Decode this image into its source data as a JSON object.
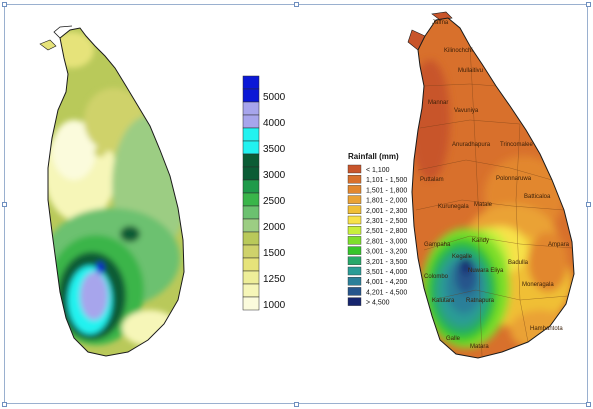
{
  "colors": {
    "ocean": "#ffffff",
    "border": "#1a1a1a",
    "frame": "#9ab0cf"
  },
  "left_map": {
    "colorbar": [
      {
        "label": "",
        "color": "#0b18d6"
      },
      {
        "label": "5000",
        "color": "#0b18d6"
      },
      {
        "label": "",
        "color": "#a7a5ec"
      },
      {
        "label": "4000",
        "color": "#a7a5ec"
      },
      {
        "label": "",
        "color": "#22f2f0"
      },
      {
        "label": "3500",
        "color": "#22f2f0"
      },
      {
        "label": "",
        "color": "#0b5c35"
      },
      {
        "label": "3000",
        "color": "#0b5c35"
      },
      {
        "label": "",
        "color": "#1f9a4a"
      },
      {
        "label": "2500",
        "color": "#3ab54a"
      },
      {
        "label": "",
        "color": "#6cc170"
      },
      {
        "label": "2000",
        "color": "#9ccd83"
      },
      {
        "label": "",
        "color": "#b9c95a"
      },
      {
        "label": "1500",
        "color": "#cfd26b"
      },
      {
        "label": "",
        "color": "#e6e37a"
      },
      {
        "label": "1250",
        "color": "#eeee99"
      },
      {
        "label": "",
        "color": "#f6f6b8"
      },
      {
        "label": "1000",
        "color": "#fbfbdc"
      }
    ]
  },
  "right_map": {
    "legend_title": "Rainfall (mm)",
    "legend": [
      {
        "label": "< 1,100",
        "color": "#c8552b"
      },
      {
        "label": "1,101 - 1,500",
        "color": "#d8702c"
      },
      {
        "label": "1,501 - 1,800",
        "color": "#e2872e"
      },
      {
        "label": "1,801 - 2,000",
        "color": "#eaa234"
      },
      {
        "label": "2,001 - 2,300",
        "color": "#f0bf36"
      },
      {
        "label": "2,301 - 2,500",
        "color": "#f7e24a"
      },
      {
        "label": "2,501 - 2,800",
        "color": "#c8ef3c"
      },
      {
        "label": "2,801 - 3,000",
        "color": "#7ede2c"
      },
      {
        "label": "3,001 - 3,200",
        "color": "#36c52a"
      },
      {
        "label": "3,201 - 3,500",
        "color": "#27a86a"
      },
      {
        "label": "3,501 - 4,000",
        "color": "#2a9c96"
      },
      {
        "label": "4,001 - 4,200",
        "color": "#2b7f99"
      },
      {
        "label": "4,201 - 4,500",
        "color": "#26558c"
      },
      {
        "label": "> 4,500",
        "color": "#16256e"
      }
    ],
    "places": [
      {
        "name": "Jaffna"
      },
      {
        "name": "Kilinochchi"
      },
      {
        "name": "Mullaitivu"
      },
      {
        "name": "Mannar"
      },
      {
        "name": "Vavuniya"
      },
      {
        "name": "Trincomalee"
      },
      {
        "name": "Anuradhapura"
      },
      {
        "name": "Puttalam"
      },
      {
        "name": "Polonnaruwa"
      },
      {
        "name": "Batticaloa"
      },
      {
        "name": "Kurunegala"
      },
      {
        "name": "Matale"
      },
      {
        "name": "Gampaha"
      },
      {
        "name": "Kandy"
      },
      {
        "name": "Ampara"
      },
      {
        "name": "Kegalle"
      },
      {
        "name": "Nuwara Eliya"
      },
      {
        "name": "Badulla"
      },
      {
        "name": "Colombo"
      },
      {
        "name": "Moneragala"
      },
      {
        "name": "Kalutara"
      },
      {
        "name": "Ratnapura"
      },
      {
        "name": "Hambantota"
      },
      {
        "name": "Galle"
      },
      {
        "name": "Matara"
      }
    ]
  }
}
